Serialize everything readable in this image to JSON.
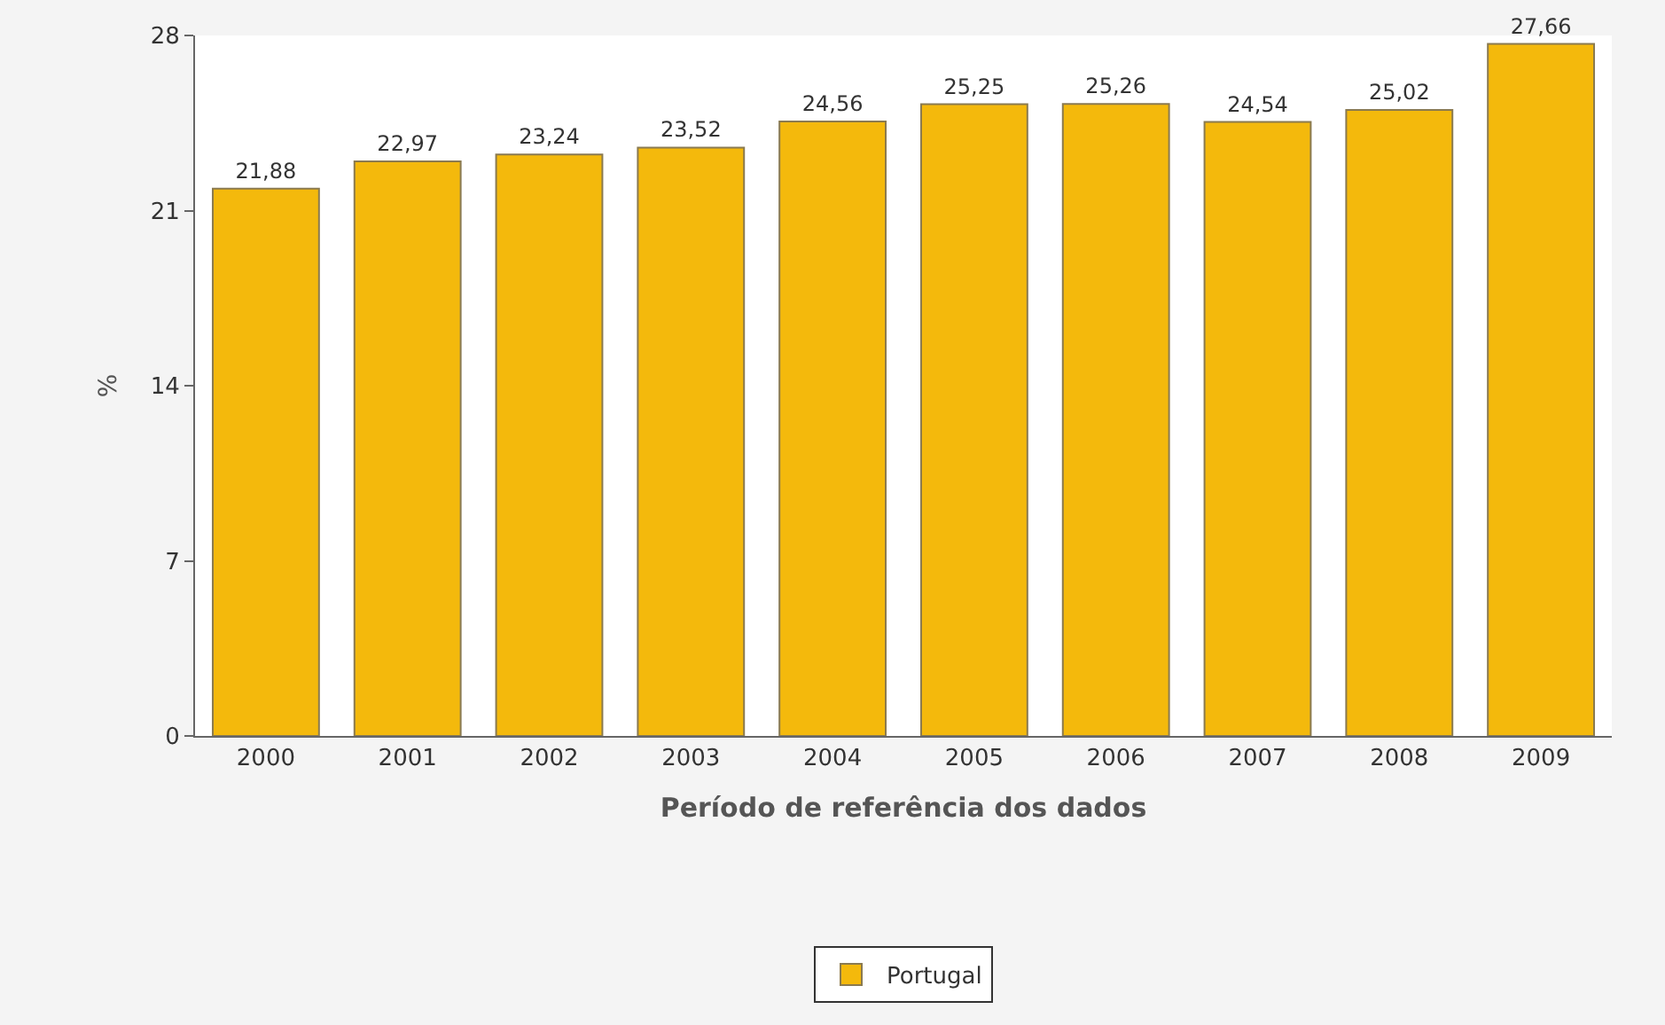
{
  "chart_data": {
    "type": "bar",
    "xlabel": "Período de referência dos dados",
    "ylabel": "%",
    "categories": [
      "2000",
      "2001",
      "2002",
      "2003",
      "2004",
      "2005",
      "2006",
      "2007",
      "2008",
      "2009"
    ],
    "series": [
      {
        "name": "Portugal",
        "color": "#f4b90c",
        "values": [
          21.88,
          22.97,
          23.24,
          23.52,
          24.56,
          25.25,
          25.26,
          24.54,
          25.02,
          27.66
        ],
        "value_labels": [
          "21,88",
          "22,97",
          "23,24",
          "23,52",
          "24,56",
          "25,25",
          "25,26",
          "24,54",
          "25,02",
          "27,66"
        ]
      }
    ],
    "ylim": [
      0,
      28
    ],
    "yticks": [
      0,
      7,
      14,
      21,
      28
    ],
    "grid": false,
    "legend": "bottom"
  }
}
